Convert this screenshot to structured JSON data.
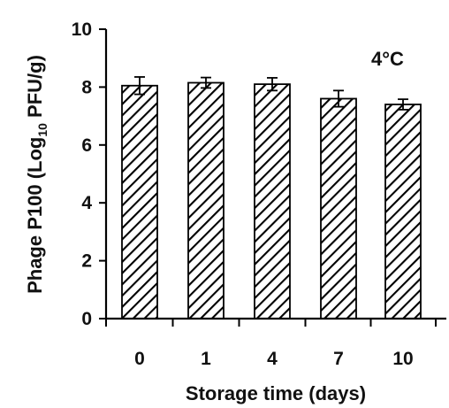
{
  "chart_data": {
    "type": "bar",
    "categories": [
      "0",
      "1",
      "4",
      "7",
      "10"
    ],
    "values": [
      8.05,
      8.15,
      8.1,
      7.6,
      7.4
    ],
    "errors": [
      0.3,
      0.18,
      0.22,
      0.28,
      0.18
    ],
    "xlabel": "Storage time (days)",
    "ylabel": {
      "prefix": "Phage P100  (Log",
      "sub": "10",
      "suffix": " PFU/g)"
    },
    "annotation": "4°C",
    "ylim": [
      0,
      10
    ],
    "yticks": [
      "0",
      "2",
      "4",
      "6",
      "8",
      "10"
    ],
    "grid": false,
    "legend": "none",
    "bar_pattern": "diagonal-hatch",
    "colors": {
      "bar_stroke": "#000000",
      "hatch": "#000000",
      "background": "#ffffff"
    }
  }
}
